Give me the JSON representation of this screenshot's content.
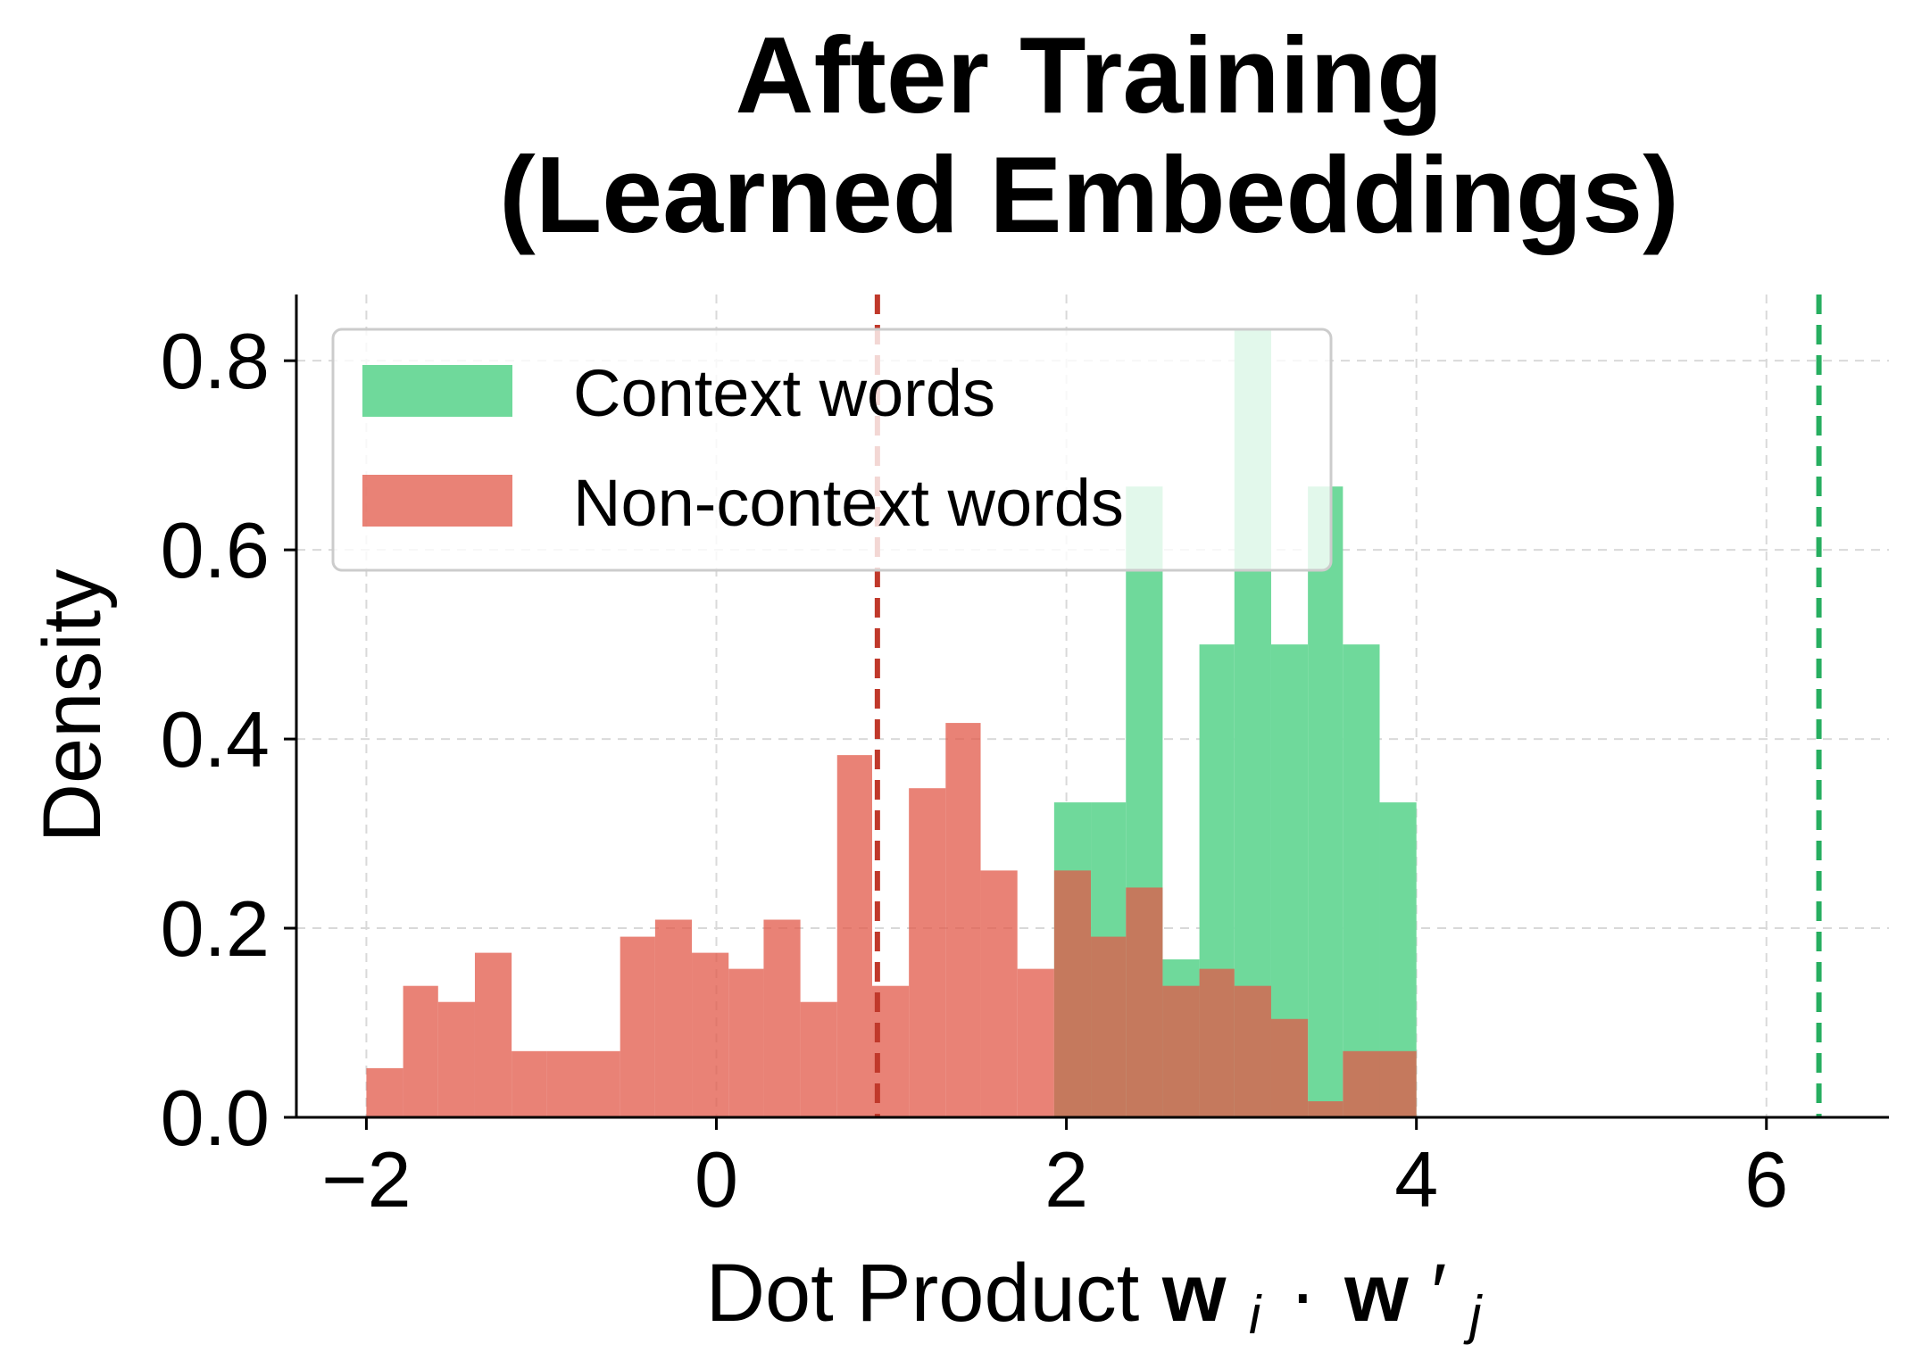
{
  "chart_data": {
    "type": "histogram",
    "title": [
      "After Training",
      "(Learned Embeddings)"
    ],
    "xlabel": "Dot Product",
    "xlabel_math": {
      "a": "w",
      "a_sub": "i",
      "op": "·",
      "b": "w",
      "b_prime": "′",
      "b_sub": "j"
    },
    "ylabel": "Density",
    "xlim": [
      -2.4,
      6.7
    ],
    "ylim": [
      0,
      0.87
    ],
    "xticks": [
      -2,
      0,
      2,
      4,
      6
    ],
    "xtick_labels": [
      "−2",
      "0",
      "2",
      "4",
      "6"
    ],
    "yticks": [
      0.0,
      0.2,
      0.4,
      0.6,
      0.8
    ],
    "ytick_labels": [
      "0.0",
      "0.2",
      "0.4",
      "0.6",
      "0.8"
    ],
    "grid": true,
    "legend_position": "upper-left",
    "series": [
      {
        "name": "Context words",
        "color": "#6fd99b",
        "alpha": 1.0,
        "bin_edges": [
          1.93,
          2.14,
          2.34,
          2.55,
          2.76,
          2.96,
          3.17,
          3.38,
          3.58,
          3.79,
          4.0
        ],
        "values": [
          0.333,
          0.333,
          0.667,
          0.167,
          0.5,
          0.833,
          0.5,
          0.667,
          0.5,
          0.333
        ]
      },
      {
        "name": "Non-context words",
        "color": "#e15848",
        "alpha": 0.75,
        "bin_edges": [
          -2.0,
          -1.79,
          -1.59,
          -1.38,
          -1.17,
          -0.97,
          -0.76,
          -0.55,
          -0.35,
          -0.14,
          0.07,
          0.27,
          0.48,
          0.69,
          0.89,
          1.1,
          1.31,
          1.51,
          1.72,
          1.93,
          2.14,
          2.34,
          2.55,
          2.76,
          2.96,
          3.17,
          3.38,
          3.58,
          3.79,
          4.0
        ],
        "values": [
          0.052,
          0.139,
          0.122,
          0.174,
          0.07,
          0.07,
          0.07,
          0.191,
          0.209,
          0.174,
          0.157,
          0.209,
          0.122,
          0.383,
          0.139,
          0.348,
          0.417,
          0.261,
          0.157,
          0.261,
          0.191,
          0.243,
          0.139,
          0.157,
          0.139,
          0.104,
          0.017,
          0.07,
          0.07
        ]
      }
    ],
    "vlines": [
      {
        "x": 0.92,
        "color": "#c0392b",
        "style": "dashed"
      },
      {
        "x": 6.3,
        "color": "#27ae60",
        "style": "dashed"
      }
    ]
  }
}
